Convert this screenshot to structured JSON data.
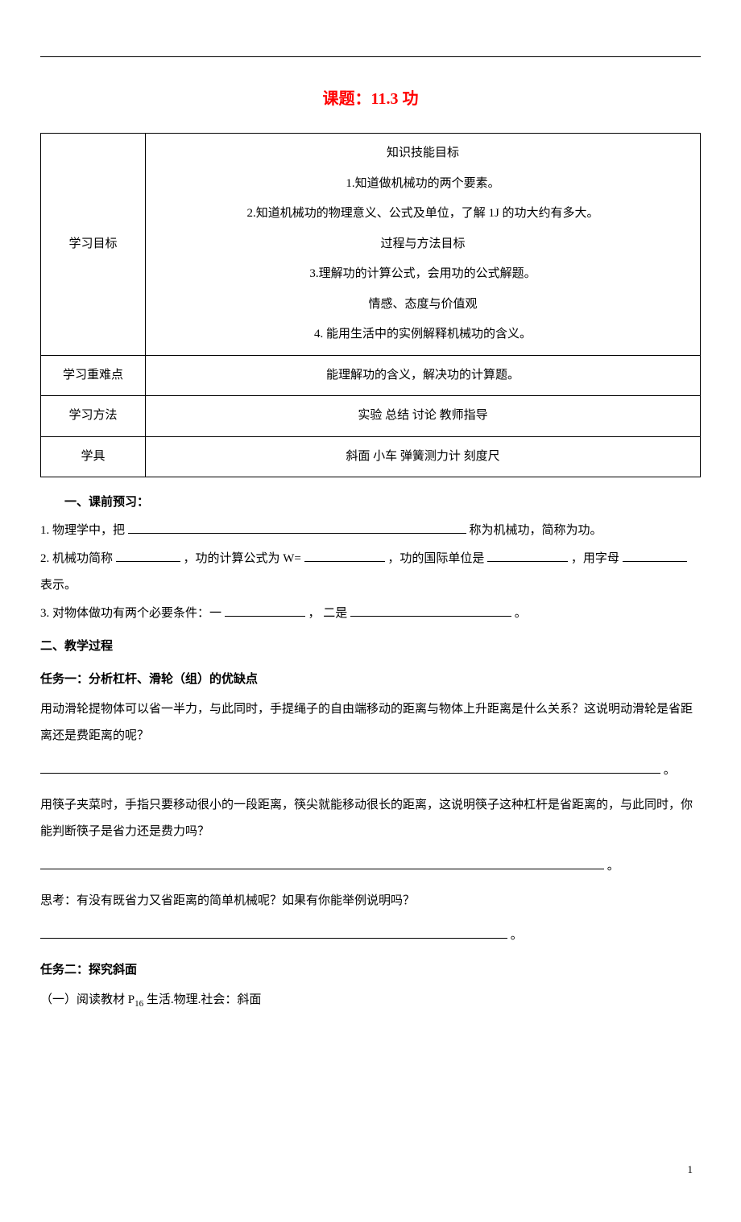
{
  "title": "课题：11.3 功",
  "table": {
    "row1_label": "学习目标",
    "goals": {
      "knowledge_header": "知识技能目标",
      "g1": "1.知道做机械功的两个要素。",
      "g2": "2.知道机械功的物理意义、公式及单位，了解 1J 的功大约有多大。",
      "process_header": "过程与方法目标",
      "g3": "3.理解功的计算公式，会用功的公式解题。",
      "emotion_header": "情感、态度与价值观",
      "g4": "4. 能用生活中的实例解释机械功的含义。"
    },
    "row2_label": "学习重难点",
    "row2_content": "能理解功的含义，解决功的计算题。",
    "row3_label": "学习方法",
    "row3_content": "实验  总结  讨论 教师指导",
    "row4_label": "学具",
    "row4_content": "斜面 小车 弹簧测力计 刻度尺"
  },
  "preclass": {
    "header": "一、课前预习：",
    "q1_a": "1. 物理学中，把",
    "q1_b": "称为机械功，简称为功。",
    "q2_a": "2. 机械功简称",
    "q2_b": "，功的计算公式为 W=",
    "q2_c": "，功的国际单位是",
    "q2_d": "，用字母",
    "q2_e": "表示。",
    "q3_a": "3. 对物体做功有两个必要条件：一",
    "q3_b": "， 二是",
    "q3_c": "。"
  },
  "teaching": {
    "header": "二、教学过程",
    "task1_title": "任务一：分析杠杆、滑轮（组）的优缺点",
    "task1_p1": "用动滑轮提物体可以省一半力，与此同时，手提绳子的自由端移动的距离与物体上升距离是什么关系？这说明动滑轮是省距离还是费距离的呢？",
    "task1_p2": "用筷子夹菜时，手指只要移动很小的一段距离，筷尖就能移动很长的距离，这说明筷子这种杠杆是省距离的，与此同时，你能判断筷子是省力还是费力吗？",
    "task1_p3": "思考：有没有既省力又省距离的简单机械呢？如果有你能举例说明吗？",
    "task2_title": "任务二：探究斜面",
    "task2_p1_a": "（一）阅读教材 P",
    "task2_p1_sub": "16",
    "task2_p1_b": " 生活.物理.社会：斜面"
  },
  "punct_period": "。",
  "page_number": "1"
}
